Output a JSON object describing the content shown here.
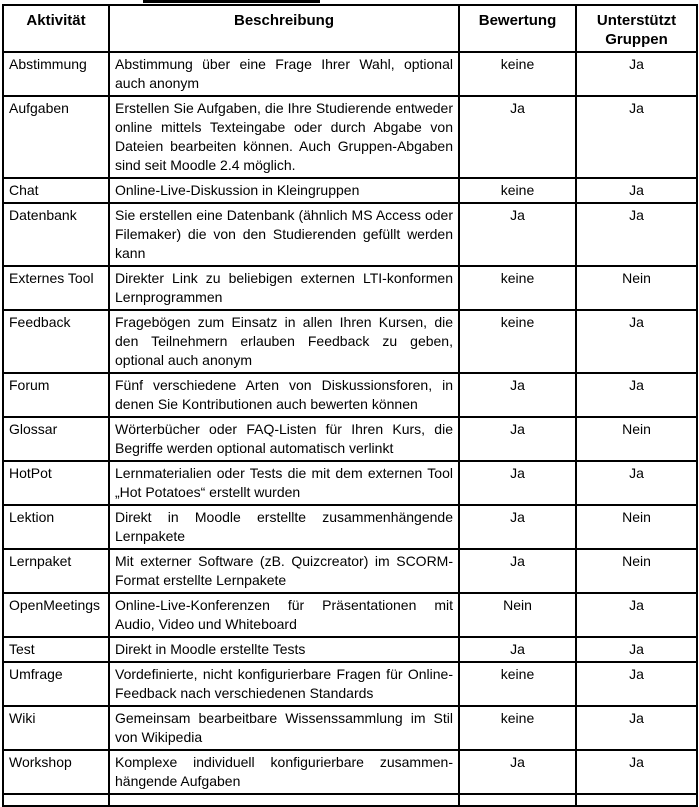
{
  "page": {
    "background": "#ffffff",
    "text_color": "#000000",
    "border_color": "#000000"
  },
  "table": {
    "columns": [
      "Aktivität",
      "Beschreibung",
      "Bewertung",
      "Unterstützt Gruppen"
    ],
    "rows": [
      {
        "activity": "Abstimmung",
        "description": "Abstimmung über eine Frage Ihrer Wahl, optional auch anonym",
        "rating": "keine",
        "groups": "Ja"
      },
      {
        "activity": "Aufgaben",
        "description": "Erstellen Sie Aufgaben, die Ihre Studierende entweder online mittels Texteingabe oder durch Abgabe von Dateien bearbeiten können. Auch Gruppen-Abgaben sind seit Moodle 2.4 möglich.",
        "rating": "Ja",
        "groups": "Ja"
      },
      {
        "activity": "Chat",
        "description": "Online-Live-Diskussion in Kleingruppen",
        "rating": "keine",
        "groups": "Ja"
      },
      {
        "activity": "Datenbank",
        "description": "Sie erstellen eine Datenbank (ähnlich MS Access oder Filemaker) die von den Studierenden gefüllt werden kann",
        "rating": "Ja",
        "groups": "Ja"
      },
      {
        "activity": "Externes Tool",
        "description": "Direkter Link zu beliebigen externen LTI-konformen Lernprogrammen",
        "rating": "keine",
        "groups": "Nein"
      },
      {
        "activity": "Feedback",
        "description": "Fragebögen zum Einsatz in allen Ihren Kursen, die den Teilnehmern erlauben Feedback zu geben, optional auch anonym",
        "rating": "keine",
        "groups": "Ja"
      },
      {
        "activity": "Forum",
        "description": "Fünf verschiedene Arten von Diskussionsforen, in denen Sie Kontributionen auch bewerten können",
        "rating": "Ja",
        "groups": "Ja"
      },
      {
        "activity": "Glossar",
        "description": "Wörterbücher oder FAQ-Listen für Ihren Kurs, die Begriffe werden optional automatisch verlinkt",
        "rating": "Ja",
        "groups": "Nein"
      },
      {
        "activity": "HotPot",
        "description": "Lernmaterialien oder Tests die mit dem externen Tool „Hot Potatoes“ erstellt wurden",
        "rating": "Ja",
        "groups": "Ja"
      },
      {
        "activity": "Lektion",
        "description": "Direkt in Moodle erstellte zusammenhängende Lernpakete",
        "rating": "Ja",
        "groups": "Nein"
      },
      {
        "activity": "Lernpaket",
        "description": "Mit externer Software (zB. Quizcreator) im SCORM-Format erstellte Lernpakete",
        "rating": "Ja",
        "groups": "Nein"
      },
      {
        "activity": "OpenMeetings",
        "description": "Online-Live-Konferenzen für Präsentationen mit Audio, Video und Whiteboard",
        "rating": "Nein",
        "groups": "Ja"
      },
      {
        "activity": "Test",
        "description": "Direkt in Moodle erstellte Tests",
        "rating": "Ja",
        "groups": "Ja"
      },
      {
        "activity": "Umfrage",
        "description": "Vordefinierte, nicht konfigurierbare Fragen für Online-Feedback nach verschiedenen Standards",
        "rating": "keine",
        "groups": "Ja"
      },
      {
        "activity": "Wiki",
        "description": "Gemeinsam bearbeitbare Wissenssammlung im Stil von Wikipedia",
        "rating": "keine",
        "groups": "Ja"
      },
      {
        "activity": "Workshop",
        "description": "Komplexe individuell konfigurierbare zusammen-hängende Aufgaben",
        "rating": "Ja",
        "groups": "Ja"
      }
    ]
  }
}
